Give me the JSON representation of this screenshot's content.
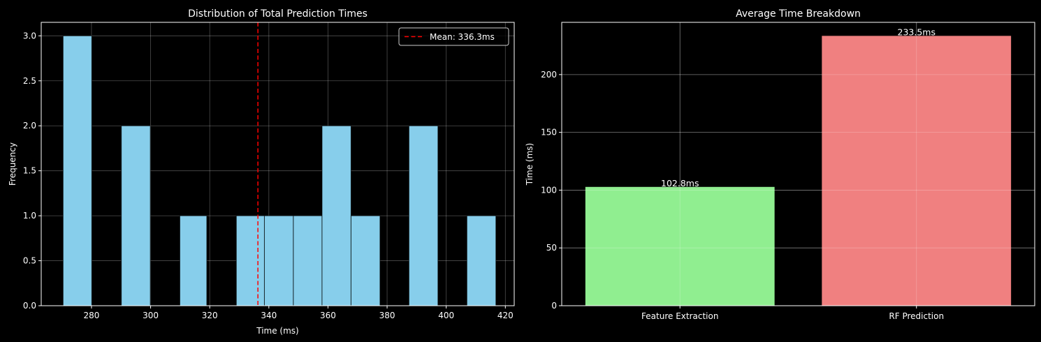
{
  "colors": {
    "background": "#000000",
    "axes": "#ffffff",
    "grid": "#ffffff",
    "hist_bar": "#87ceeb",
    "hist_edge": "#000000",
    "mean_line": "#ff0000"
  },
  "chart_data": [
    {
      "type": "bar",
      "title": "Distribution of Total Prediction Times",
      "xlabel": "Time (ms)",
      "ylabel": "Frequency",
      "xlim": [
        263,
        423
      ],
      "ylim": [
        0,
        3.15
      ],
      "xticks": [
        280,
        300,
        320,
        340,
        360,
        380,
        400,
        420
      ],
      "xtick_labels": [
        "280",
        "300",
        "320",
        "340",
        "360",
        "380",
        "400",
        "420"
      ],
      "yticks": [
        0,
        0.5,
        1.0,
        1.5,
        2.0,
        2.5,
        3.0
      ],
      "ytick_labels": [
        "0.0",
        "0.5",
        "1.0",
        "1.5",
        "2.0",
        "2.5",
        "3.0"
      ],
      "grid": true,
      "legend_position": "top-right",
      "bins": [
        {
          "start": 270.4,
          "end": 280.1,
          "count": 3
        },
        {
          "start": 290.1,
          "end": 299.9,
          "count": 2
        },
        {
          "start": 309.9,
          "end": 319.0,
          "count": 1
        },
        {
          "start": 329.0,
          "end": 338.5,
          "count": 1
        },
        {
          "start": 338.5,
          "end": 348.3,
          "count": 1
        },
        {
          "start": 348.3,
          "end": 358.0,
          "count": 1
        },
        {
          "start": 358.0,
          "end": 367.8,
          "count": 2
        },
        {
          "start": 367.8,
          "end": 377.6,
          "count": 1
        },
        {
          "start": 387.4,
          "end": 397.2,
          "count": 2
        },
        {
          "start": 407.0,
          "end": 416.8,
          "count": 1
        }
      ],
      "mean_line": {
        "x": 336.3,
        "label": "Mean: 336.3ms"
      }
    },
    {
      "type": "bar",
      "title": "Average Time Breakdown",
      "xlabel": "",
      "ylabel": "Time (ms)",
      "ylim": [
        0,
        245.2
      ],
      "yticks": [
        0,
        50,
        100,
        150,
        200
      ],
      "ytick_labels": [
        "0",
        "50",
        "100",
        "150",
        "200"
      ],
      "grid": true,
      "categories": [
        "Feature Extraction",
        "RF Prediction"
      ],
      "values": [
        102.8,
        233.5
      ],
      "value_labels": [
        "102.8ms",
        "233.5ms"
      ],
      "bar_colors": [
        "#90ee90",
        "#f08080"
      ]
    }
  ]
}
